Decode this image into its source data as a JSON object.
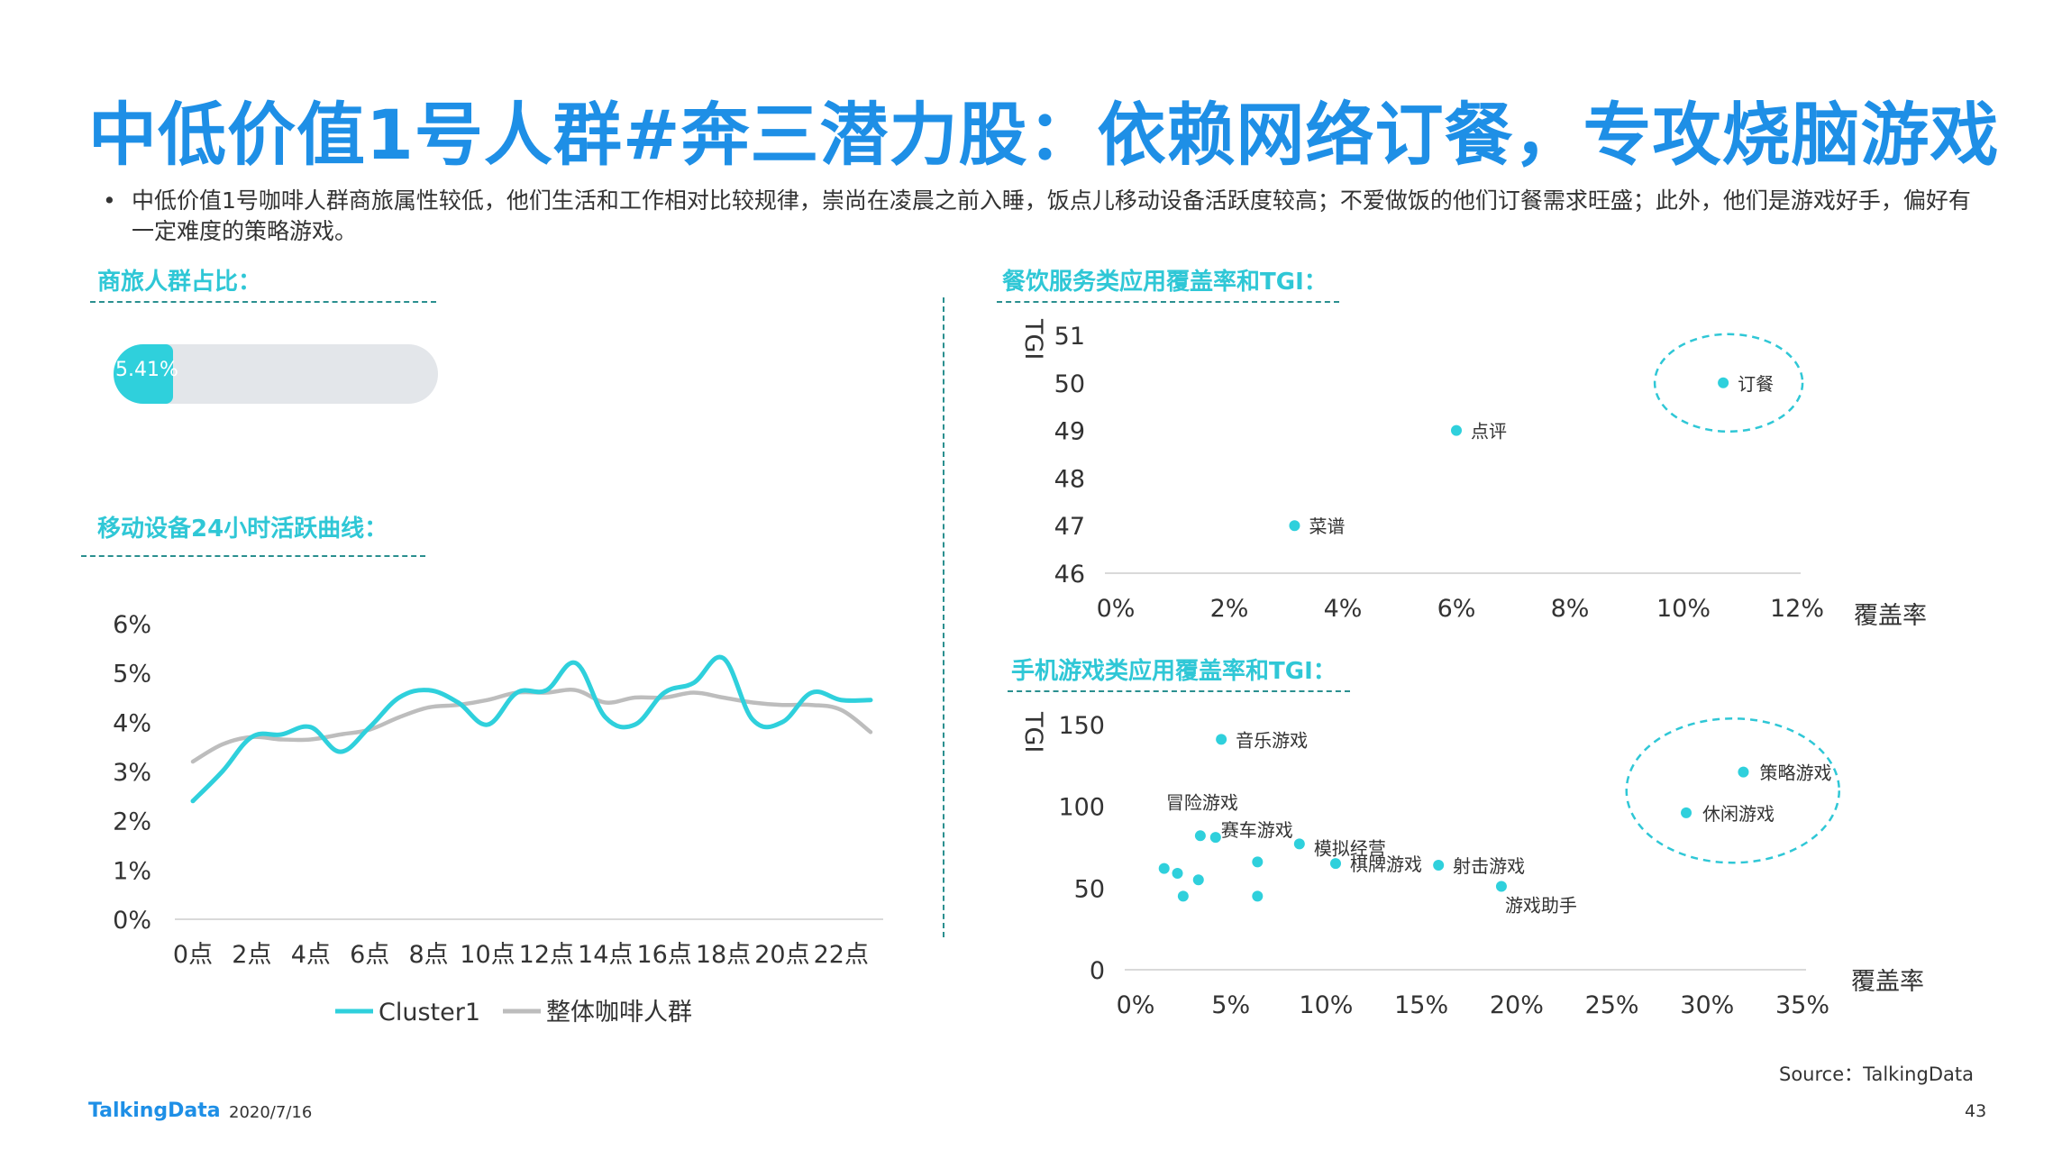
{
  "title": "中低价值1号人群#奔三潜力股：依赖网络订餐，专攻烧脑游戏",
  "bullet": "中低价值1号咖啡人群商旅属性较低，他们生活和工作相对比较规律，崇尚在凌晨之前入睡，饭点儿移动设备活跃度较高；不爱做饭的他们订餐需求旺盛；此外，他们是游戏好手，偏好有一定难度的策略游戏。",
  "bullet_marker": "•",
  "sections": {
    "business": "商旅人群占比：",
    "mobile": "移动设备24小时活跃曲线：",
    "dining": "餐饮服务类应用覆盖率和TGI：",
    "games": "手机游戏类应用覆盖率和TGI："
  },
  "colors": {
    "accent": "#2fd0dc",
    "gray": "#bdbdbd",
    "title": "#1e8fe6",
    "section": "#2fc7d6"
  },
  "chart_data": [
    {
      "type": "bar",
      "name": "business-share",
      "value": 5.41,
      "max": 100,
      "label": "5.41%"
    },
    {
      "type": "line",
      "x": [
        "0点",
        "1点",
        "2点",
        "3点",
        "4点",
        "5点",
        "6点",
        "7点",
        "8点",
        "9点",
        "10点",
        "11点",
        "12点",
        "13点",
        "14点",
        "15点",
        "16点",
        "17点",
        "18点",
        "19点",
        "20点",
        "21点",
        "22点",
        "23点"
      ],
      "xticks": [
        "0点",
        "2点",
        "4点",
        "6点",
        "8点",
        "10点",
        "12点",
        "14点",
        "16点",
        "18点",
        "20点",
        "22点"
      ],
      "yticks": [
        "0%",
        "1%",
        "2%",
        "3%",
        "4%",
        "5%",
        "6%"
      ],
      "ylim": [
        0,
        6
      ],
      "series": [
        {
          "name": "Cluster1",
          "color": "#2fd0dc",
          "values": [
            2.4,
            3.0,
            3.7,
            3.75,
            3.9,
            3.4,
            3.9,
            4.5,
            4.65,
            4.4,
            3.95,
            4.6,
            4.65,
            5.2,
            4.1,
            3.95,
            4.6,
            4.8,
            5.3,
            4.05,
            4.0,
            4.6,
            4.45,
            4.45
          ]
        },
        {
          "name": "整体咖啡人群",
          "color": "#bdbdbd",
          "values": [
            3.2,
            3.55,
            3.7,
            3.65,
            3.65,
            3.75,
            3.85,
            4.1,
            4.3,
            4.35,
            4.45,
            4.6,
            4.6,
            4.65,
            4.4,
            4.5,
            4.5,
            4.6,
            4.5,
            4.4,
            4.35,
            4.35,
            4.25,
            3.8
          ]
        }
      ]
    },
    {
      "type": "scatter",
      "name": "dining",
      "ylabel": "TGI",
      "xlabel": "覆盖率",
      "xlim": [
        0,
        12
      ],
      "ylim": [
        46,
        51
      ],
      "xticks": [
        "0%",
        "2%",
        "4%",
        "6%",
        "8%",
        "10%",
        "12%"
      ],
      "yticks": [
        "46",
        "47",
        "48",
        "49",
        "50",
        "51"
      ],
      "points": [
        {
          "label": "订餐",
          "x": 10.7,
          "y": 50,
          "highlight": true
        },
        {
          "label": "点评",
          "x": 6.0,
          "y": 49
        },
        {
          "label": "菜谱",
          "x": 3.15,
          "y": 47
        }
      ]
    },
    {
      "type": "scatter",
      "name": "games",
      "ylabel": "TGI",
      "xlabel": "覆盖率",
      "xlim": [
        0,
        35
      ],
      "ylim": [
        0,
        150
      ],
      "xticks": [
        "0%",
        "5%",
        "10%",
        "15%",
        "20%",
        "25%",
        "30%",
        "35%"
      ],
      "yticks": [
        "0",
        "50",
        "100",
        "150"
      ],
      "points": [
        {
          "label": "音乐游戏",
          "x": 4.5,
          "y": 141
        },
        {
          "label": "冒险游戏",
          "x": 3.4,
          "y": 82
        },
        {
          "label": "赛车游戏",
          "x": 4.2,
          "y": 81
        },
        {
          "label": "模拟经营",
          "x": 8.6,
          "y": 77
        },
        {
          "label": "棋牌游戏",
          "x": 10.5,
          "y": 65
        },
        {
          "label": "射击游戏",
          "x": 15.9,
          "y": 64
        },
        {
          "label": "游戏助手",
          "x": 19.2,
          "y": 51
        },
        {
          "label": "策略游戏",
          "x": 31.9,
          "y": 121,
          "highlight": true
        },
        {
          "label": "休闲游戏",
          "x": 28.9,
          "y": 96,
          "highlight": true
        },
        {
          "label": "",
          "x": 1.5,
          "y": 62
        },
        {
          "label": "",
          "x": 2.2,
          "y": 59
        },
        {
          "label": "",
          "x": 3.3,
          "y": 55
        },
        {
          "label": "",
          "x": 2.5,
          "y": 45
        },
        {
          "label": "",
          "x": 6.4,
          "y": 66
        },
        {
          "label": "",
          "x": 6.4,
          "y": 45
        }
      ]
    }
  ],
  "footer": {
    "logo": "TalkingData",
    "date": "2020/7/16",
    "source": "Source：TalkingData",
    "page": "43"
  }
}
